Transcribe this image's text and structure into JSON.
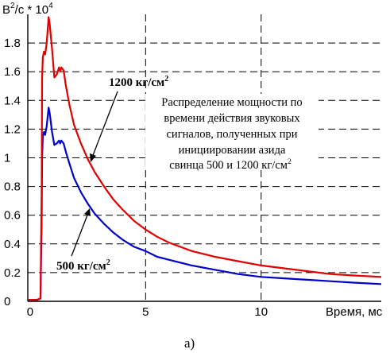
{
  "chart_data": {
    "type": "line",
    "ylabel": "В²/с * 10⁴",
    "ylabel_base": "В",
    "ylabel_sup": "2",
    "ylabel_rest": "/с * 10",
    "ylabel_exp": "4",
    "xlabel": "Время, мс",
    "xlim": [
      -0.1,
      15.2
    ],
    "ylim": [
      0,
      2.0
    ],
    "x_ticks": [
      "0",
      "5",
      "10"
    ],
    "x_tick_values": [
      0,
      5,
      10
    ],
    "y_ticks": [
      "0",
      "0.2",
      "0.4",
      "0.6",
      "0.8",
      "1",
      "1.2",
      "1.4",
      "1.6",
      "1.8"
    ],
    "y_tick_values": [
      0,
      0.2,
      0.4,
      0.6,
      0.8,
      1.0,
      1.2,
      1.4,
      1.6,
      1.8
    ],
    "grid": "dashed",
    "series": [
      {
        "name": "1200 кг/см²",
        "color": "#e00000",
        "x": [
          -0.1,
          0.3,
          0.45,
          0.5,
          0.52,
          0.55,
          0.6,
          0.65,
          0.72,
          0.8,
          0.85,
          0.95,
          1.05,
          1.15,
          1.25,
          1.3,
          1.35,
          1.45,
          1.55,
          1.7,
          1.9,
          2.2,
          2.5,
          2.8,
          3.2,
          3.6,
          4.0,
          4.5,
          5.0,
          5.5,
          6.0,
          7.0,
          8.0,
          9.0,
          10.0,
          11.0,
          12.0,
          13.0,
          14.0,
          15.2
        ],
        "values": [
          0.01,
          0.01,
          0.02,
          0.8,
          1.55,
          1.7,
          1.74,
          1.72,
          1.8,
          1.98,
          1.93,
          1.76,
          1.56,
          1.58,
          1.63,
          1.6,
          1.63,
          1.61,
          1.5,
          1.37,
          1.23,
          1.1,
          0.99,
          0.9,
          0.8,
          0.71,
          0.64,
          0.56,
          0.5,
          0.45,
          0.41,
          0.35,
          0.31,
          0.28,
          0.25,
          0.23,
          0.21,
          0.19,
          0.18,
          0.17
        ]
      },
      {
        "name": "500 кг/см²",
        "color": "#0000cc",
        "x": [
          -0.1,
          0.3,
          0.45,
          0.5,
          0.52,
          0.55,
          0.6,
          0.65,
          0.72,
          0.8,
          0.85,
          0.95,
          1.05,
          1.15,
          1.25,
          1.3,
          1.35,
          1.45,
          1.55,
          1.7,
          1.9,
          2.2,
          2.5,
          2.8,
          3.2,
          3.6,
          4.0,
          4.5,
          5.0,
          5.5,
          6.0,
          7.0,
          8.0,
          9.0,
          10.0,
          11.0,
          12.0,
          13.0,
          14.0,
          15.2
        ],
        "values": [
          0.01,
          0.01,
          0.02,
          0.6,
          1.0,
          1.15,
          1.18,
          1.16,
          1.22,
          1.35,
          1.31,
          1.18,
          1.09,
          1.1,
          1.12,
          1.1,
          1.12,
          1.1,
          1.04,
          0.96,
          0.86,
          0.76,
          0.68,
          0.61,
          0.54,
          0.48,
          0.43,
          0.38,
          0.35,
          0.31,
          0.29,
          0.25,
          0.22,
          0.19,
          0.17,
          0.16,
          0.15,
          0.14,
          0.13,
          0.12
        ]
      }
    ],
    "annotations": {
      "label_1200_main": "1200 кг/см",
      "label_1200_sup": "2",
      "label_500_main": "500 кг/см",
      "label_500_sup": "2",
      "description_lines": [
        "Распределение мощности по",
        "времени действия звуковых",
        "сигналов, полученных при",
        "инициировании азида"
      ],
      "description_last_main": "свинца 500 и 1200 кг/см",
      "description_last_sup": "2"
    },
    "caption": "а)"
  }
}
